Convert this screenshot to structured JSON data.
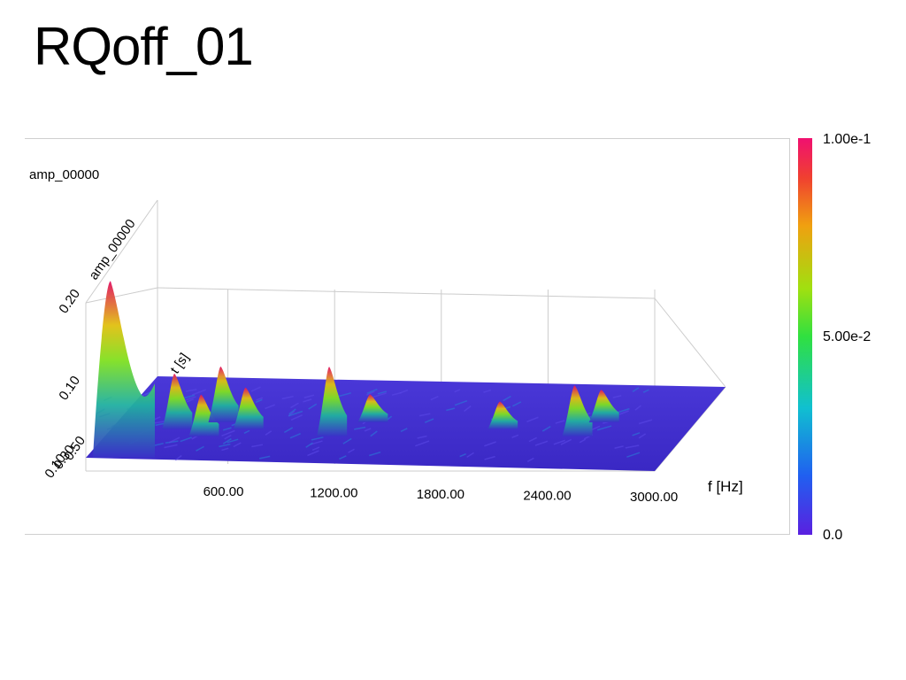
{
  "slide": {
    "title": "RQoff_01"
  },
  "chart_data": {
    "type": "surface",
    "variable": "amp_00000",
    "axes": {
      "x": {
        "label": "f [Hz]",
        "range": [
          0,
          3000
        ],
        "ticks": [
          "600.00",
          "1200.00",
          "1800.00",
          "2400.00",
          "3000.00"
        ]
      },
      "y": {
        "label": "t [s]",
        "ticks": [
          "0.10",
          "0.30",
          "0.50"
        ]
      },
      "z": {
        "label": "amp_00000",
        "ticks": [
          "0.10",
          "0.20"
        ]
      }
    },
    "colorbar": {
      "ticks": [
        "1.00e-1",
        "5.00e-2",
        "0.0"
      ],
      "range": [
        0,
        0.1
      ]
    },
    "peaks": [
      {
        "f": 40,
        "amp": 0.19
      },
      {
        "f": 300,
        "amp": 0.06
      },
      {
        "f": 450,
        "amp": 0.045
      },
      {
        "f": 560,
        "amp": 0.06
      },
      {
        "f": 700,
        "amp": 0.045
      },
      {
        "f": 1170,
        "amp": 0.075
      },
      {
        "f": 1400,
        "amp": 0.03
      },
      {
        "f": 2130,
        "amp": 0.03
      },
      {
        "f": 2550,
        "amp": 0.055
      },
      {
        "f": 2700,
        "amp": 0.035
      }
    ]
  }
}
